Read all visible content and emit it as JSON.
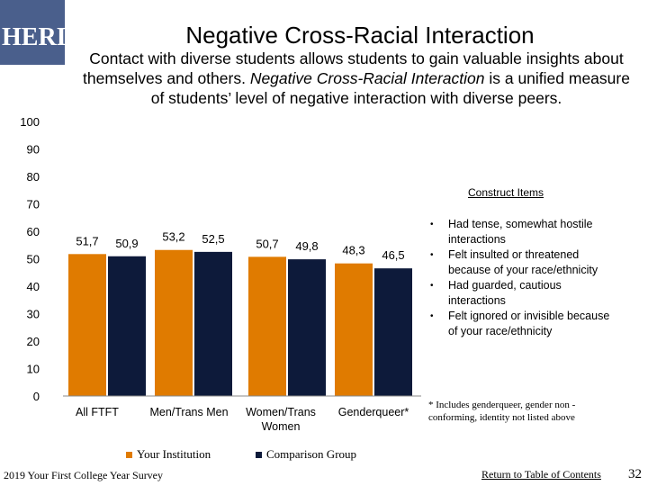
{
  "logo_text": "HERI",
  "title": "Negative Cross-Racial Interaction",
  "subtitle": {
    "part1": "Contact with diverse students allows students to gain valuable insights about themselves and others. ",
    "italic": "Negative Cross-Racial Interaction",
    "part2": " is a unified measure of students’   level of negative interaction with diverse peers."
  },
  "chart_data": {
    "type": "bar",
    "title": "Negative Cross-Racial Interaction",
    "categories": [
      "All FTFT",
      "Men/Trans Men",
      "Women/Trans Women",
      "Genderqueer*"
    ],
    "series": [
      {
        "name": "Your Institution",
        "color": "#e07b00",
        "values": [
          51.7,
          53.2,
          50.7,
          48.3
        ],
        "labels": [
          "51,7",
          "53,2",
          "50,7",
          "48,3"
        ]
      },
      {
        "name": "Comparison Group",
        "color": "#0d1a3a",
        "values": [
          50.9,
          52.5,
          49.8,
          46.5
        ],
        "labels": [
          "50,9",
          "52,5",
          "49,8",
          "46,5"
        ]
      }
    ],
    "ylim": [
      0,
      100
    ],
    "yticks": [
      0,
      10,
      20,
      30,
      40,
      50,
      60,
      70,
      80,
      90,
      100
    ],
    "ytick_labels": [
      "0",
      "10",
      "20",
      "30",
      "40",
      "50",
      "60",
      "70",
      "80",
      "90",
      "100"
    ],
    "xlabel": "",
    "ylabel": "",
    "grid": false,
    "legend": "bottom"
  },
  "construct": {
    "title": "Construct Items",
    "bullet": "•",
    "items": [
      "Had tense, somewhat hostile interactions",
      "Felt insulted or threatened because of your race/ethnicity",
      "Had guarded, cautious interactions",
      "Felt ignored or invisible because of your race/ethnicity"
    ]
  },
  "footnote": "* Includes genderqueer, gender non - conforming, identity not listed above",
  "legend": {
    "your_institution": "Your Institution",
    "comparison_group": "Comparison Group"
  },
  "footer": {
    "survey": "2019 Your First College Year Survey",
    "return_link": "Return to Table of Contents",
    "page_number": "32"
  }
}
